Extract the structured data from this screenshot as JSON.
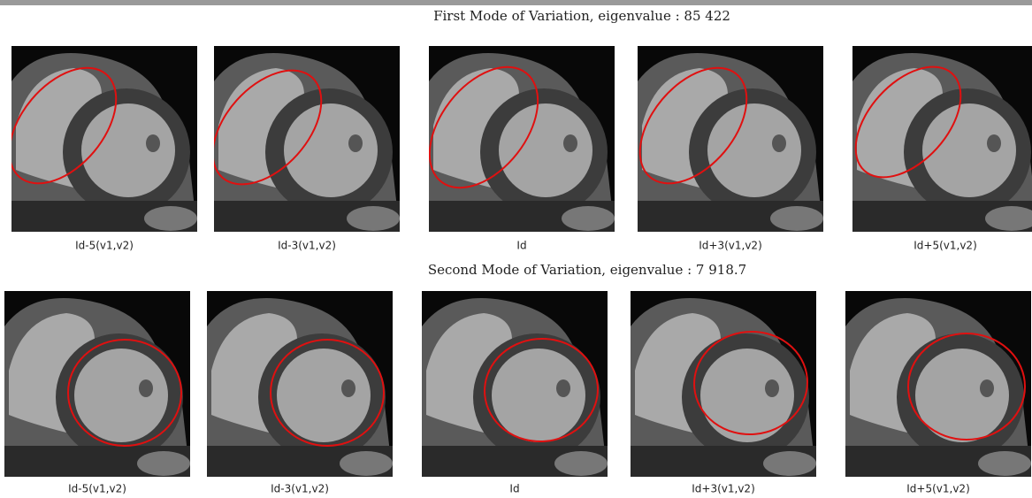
{
  "figure": {
    "rows": [
      {
        "title": "First Mode of Variation, eigenvalue : 85 422",
        "panels": [
          "Id-5(v1,v2)",
          "Id-3(v1,v2)",
          "Id",
          "Id+3(v1,v2)",
          "Id+5(v1,v2)"
        ]
      },
      {
        "title": "Second Mode of Variation, eigenvalue : 7 918.7",
        "panels": [
          "Id-5(v1,v2)",
          "Id-3(v1,v2)",
          "Id",
          "Id+3(v1,v2)",
          "Id+5(v1,v2)"
        ]
      }
    ]
  }
}
